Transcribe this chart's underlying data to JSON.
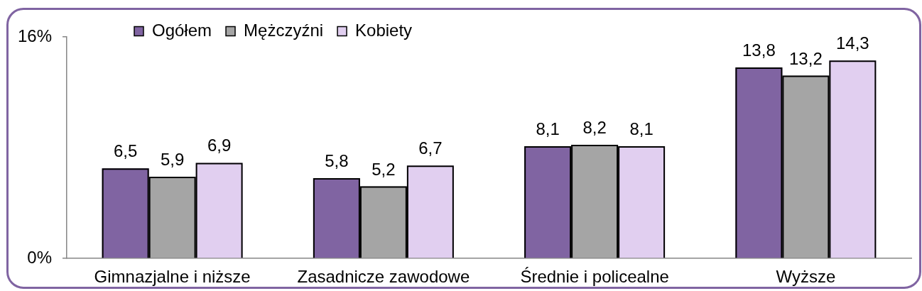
{
  "chart_data": {
    "type": "bar",
    "categories": [
      "Gimnazjalne i niższe",
      "Zasadnicze zawodowe",
      "Średnie i policealne",
      "Wyższe"
    ],
    "series": [
      {
        "name": "Ogółem",
        "color": "#8064a2",
        "values": [
          6.5,
          5.8,
          8.1,
          13.8
        ],
        "value_labels": [
          "6,5",
          "5,8",
          "8,1",
          "13,8"
        ]
      },
      {
        "name": "Mężczyźni",
        "color": "#a5a5a5",
        "values": [
          5.9,
          5.2,
          8.2,
          13.2
        ],
        "value_labels": [
          "5,9",
          "5,2",
          "8,2",
          "13,2"
        ]
      },
      {
        "name": "Kobiety",
        "color": "#e1cff0",
        "values": [
          6.9,
          6.7,
          8.1,
          14.3
        ],
        "value_labels": [
          "6,9",
          "6,7",
          "8,1",
          "14,3"
        ]
      }
    ],
    "ylim": [
      0,
      16
    ],
    "yticks": [
      {
        "value": 0,
        "label": "0%"
      },
      {
        "value": 16,
        "label": "16%"
      }
    ],
    "legend": "top left"
  }
}
